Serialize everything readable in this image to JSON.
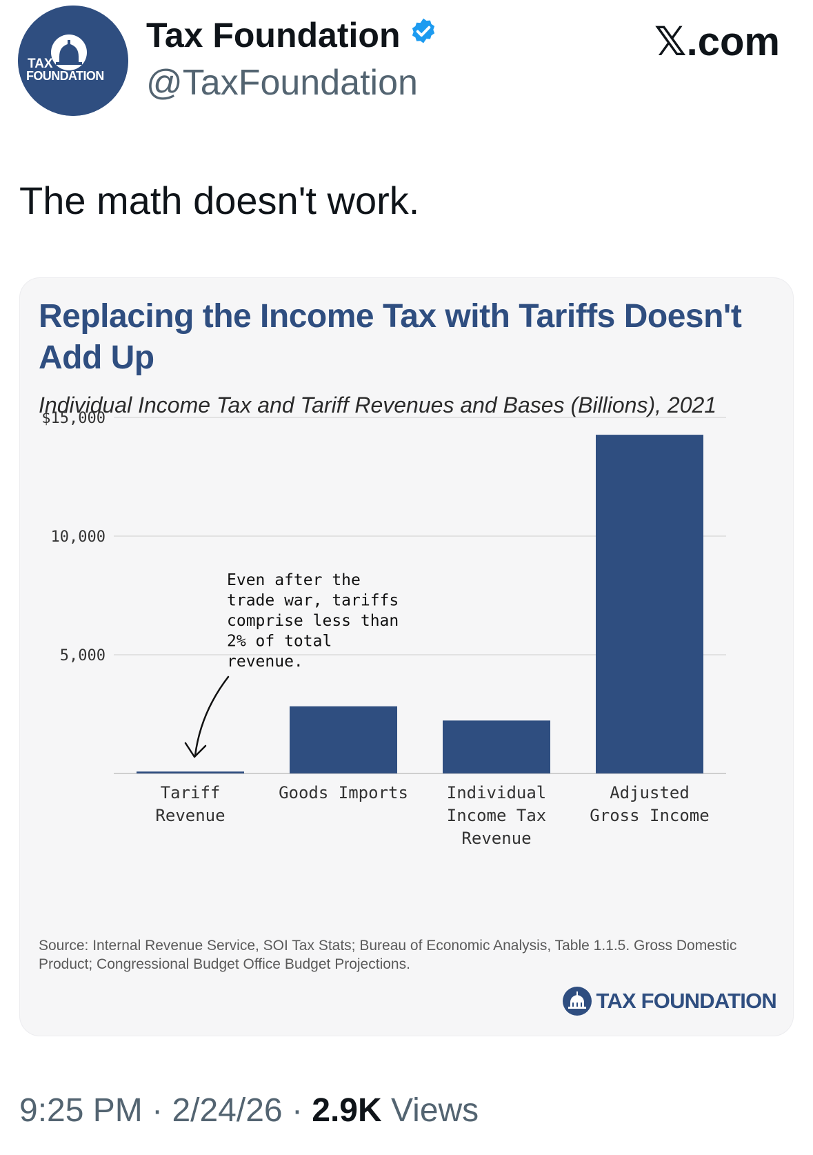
{
  "author": {
    "display_name": "Tax Foundation",
    "handle": "@TaxFoundation",
    "avatar_text_line1": "TAX",
    "avatar_text_line2": "FOUNDATION"
  },
  "site": "𝕏.com",
  "tweet": {
    "text": "The math doesn't work."
  },
  "chart_card": {
    "source": "Source: Internal Revenue Service, SOI Tax Stats; Bureau of Economic Analysis, Table 1.1.5. Gross Domestic Product; Congressional Budget Office Budget Projections.",
    "logo_text": "TAX FOUNDATION"
  },
  "chart_data": {
    "type": "bar",
    "title": "Replacing the Income Tax with Tariffs Doesn't Add Up",
    "subtitle": "Individual Income Tax and Tariff Revenues and Bases (Billions), 2021",
    "categories": [
      [
        "Tariff",
        "Revenue"
      ],
      [
        "Goods Imports"
      ],
      [
        "Individual",
        "Income Tax",
        "Revenue"
      ],
      [
        "Adjusted",
        "Gross Income"
      ]
    ],
    "values": [
      80,
      2830,
      2230,
      14270
    ],
    "ylim": [
      0,
      15000
    ],
    "yticks": [
      {
        "value": 15000,
        "label": "$15,000"
      },
      {
        "value": 10000,
        "label": "10,000"
      },
      {
        "value": 5000,
        "label": "5,000"
      }
    ],
    "grid": true,
    "annotation": {
      "lines": [
        "Even after the",
        "trade war, tariffs",
        "comprise less than",
        "2% of total",
        "revenue."
      ]
    },
    "colors": {
      "bar": "#2f4e80",
      "grid": "#dcdcdc",
      "text": "#333333"
    }
  },
  "meta": {
    "time": "9:25 PM",
    "separator": "·",
    "date": "2/24/26",
    "views_count": "2.9K",
    "views_label": "Views"
  },
  "colors": {
    "brand": "#2f4e80",
    "verified": "#1d9bf0",
    "secondary_text": "#536471"
  }
}
